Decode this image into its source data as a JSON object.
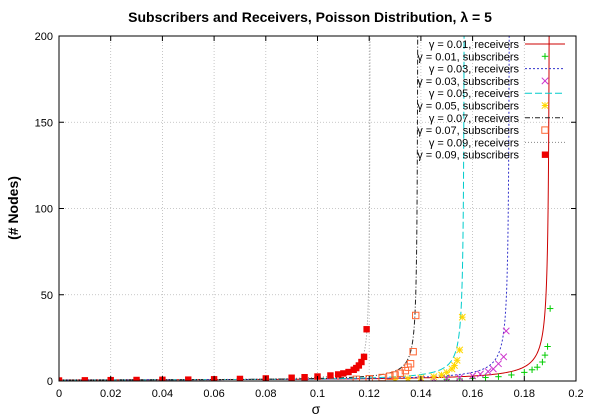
{
  "chart_data": {
    "type": "line",
    "title": "Subscribers and Receivers, Poisson Distribution, λ = 5",
    "xlabel": "σ",
    "ylabel": "(# Nodes)",
    "xlim": [
      0,
      0.2
    ],
    "ylim": [
      0,
      200
    ],
    "xticks": [
      "0",
      "0.02",
      "0.04",
      "0.06",
      "0.08",
      "0.1",
      "0.12",
      "0.14",
      "0.16",
      "0.18",
      "0.2"
    ],
    "yticks": [
      "0",
      "50",
      "100",
      "150",
      "200"
    ],
    "grid": true,
    "legend_position": "top-right",
    "series": [
      {
        "name": "γ = 0.01, receivers",
        "kind": "line",
        "color": "#cc0000",
        "dash": "",
        "sigma_max": 0.19,
        "scale": 0.08
      },
      {
        "name": "γ = 0.01, subscribers",
        "kind": "points",
        "marker": "plus",
        "color": "#00cc00",
        "x": [
          0.15,
          0.155,
          0.16,
          0.165,
          0.17,
          0.175,
          0.18,
          0.183,
          0.185,
          0.187,
          0.188,
          0.189,
          0.19
        ],
        "y": [
          1,
          1.2,
          1.5,
          2,
          2.5,
          3.5,
          5,
          6.5,
          8,
          11,
          15,
          20,
          42
        ]
      },
      {
        "name": "γ = 0.03, receivers",
        "kind": "line",
        "color": "#3333cc",
        "dash": "2 2",
        "sigma_max": 0.1745,
        "scale": 0.07
      },
      {
        "name": "γ = 0.03, subscribers",
        "kind": "points",
        "marker": "cross",
        "color": "#cc33cc",
        "x": [
          0.14,
          0.145,
          0.15,
          0.155,
          0.16,
          0.163,
          0.166,
          0.168,
          0.17,
          0.172,
          0.173
        ],
        "y": [
          1,
          1.2,
          1.5,
          2,
          3,
          4,
          5.5,
          7,
          10,
          14,
          29
        ]
      },
      {
        "name": "γ = 0.05, receivers",
        "kind": "line",
        "color": "#00cccc",
        "dash": "7 3",
        "sigma_max": 0.157,
        "scale": 0.06
      },
      {
        "name": "γ = 0.05, subscribers",
        "kind": "points",
        "marker": "star",
        "color": "#ffd700",
        "x": [
          0.13,
          0.135,
          0.14,
          0.145,
          0.148,
          0.15,
          0.152,
          0.153,
          0.154,
          0.155,
          0.156
        ],
        "y": [
          1,
          1.3,
          1.8,
          2.5,
          3.5,
          5,
          7,
          9,
          12,
          18,
          37
        ]
      },
      {
        "name": "γ = 0.07, receivers",
        "kind": "line",
        "color": "#222222",
        "dash": "5 2 1 2",
        "sigma_max": 0.139,
        "scale": 0.05
      },
      {
        "name": "γ = 0.07, subscribers",
        "kind": "points",
        "marker": "square-open",
        "color": "#ff6633",
        "x": [
          0.115,
          0.12,
          0.125,
          0.128,
          0.13,
          0.132,
          0.134,
          0.135,
          0.136,
          0.137,
          0.138
        ],
        "y": [
          1,
          1.3,
          2,
          2.8,
          3.5,
          4.5,
          6,
          8,
          10,
          17,
          38
        ]
      },
      {
        "name": "γ = 0.09, receivers",
        "kind": "line",
        "color": "#888888",
        "dash": "1 2",
        "sigma_max": 0.1205,
        "scale": 0.04
      },
      {
        "name": "γ = 0.09, subscribers",
        "kind": "points",
        "marker": "square-filled",
        "color": "#ee0000",
        "x": [
          0.0,
          0.01,
          0.02,
          0.03,
          0.04,
          0.05,
          0.06,
          0.07,
          0.08,
          0.09,
          0.095,
          0.1,
          0.105,
          0.108,
          0.11,
          0.112,
          0.114,
          0.115,
          0.116,
          0.117,
          0.118,
          0.119
        ],
        "y": [
          0.3,
          0.4,
          0.5,
          0.6,
          0.7,
          0.8,
          1.0,
          1.2,
          1.5,
          1.9,
          2.2,
          2.6,
          3.2,
          3.8,
          4.4,
          5.2,
          6.5,
          7.5,
          9,
          11,
          14,
          30
        ]
      }
    ]
  }
}
